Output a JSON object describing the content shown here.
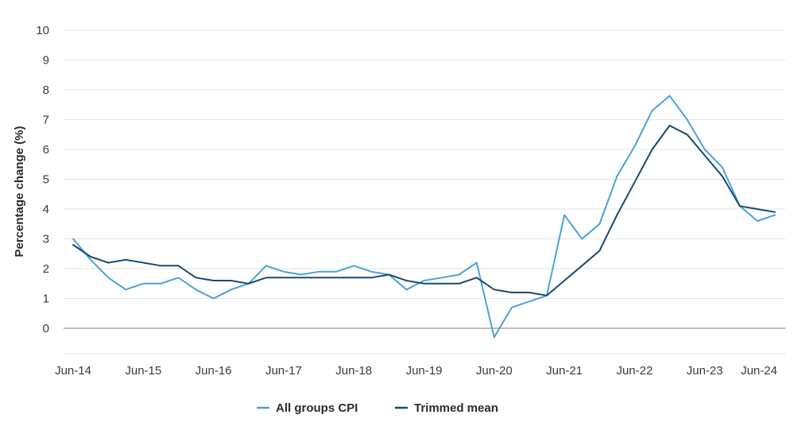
{
  "chart_data": {
    "type": "line",
    "ylabel": "Percentage change (%)",
    "ylim": [
      -1,
      10
    ],
    "yticks": [
      0,
      1,
      2,
      3,
      4,
      5,
      6,
      7,
      8,
      9,
      10
    ],
    "xticks": [
      "Jun-14",
      "Jun-15",
      "Jun-16",
      "Jun-17",
      "Jun-18",
      "Jun-19",
      "Jun-20",
      "Jun-21",
      "Jun-22",
      "Jun-23",
      "Jun-24"
    ],
    "x": [
      "Jun-14",
      "Sep-14",
      "Dec-14",
      "Mar-15",
      "Jun-15",
      "Sep-15",
      "Dec-15",
      "Mar-16",
      "Jun-16",
      "Sep-16",
      "Dec-16",
      "Mar-17",
      "Jun-17",
      "Sep-17",
      "Dec-17",
      "Mar-18",
      "Jun-18",
      "Sep-18",
      "Dec-18",
      "Mar-19",
      "Jun-19",
      "Sep-19",
      "Dec-19",
      "Mar-20",
      "Jun-20",
      "Sep-20",
      "Dec-20",
      "Mar-21",
      "Jun-21",
      "Sep-21",
      "Dec-21",
      "Mar-22",
      "Jun-22",
      "Sep-22",
      "Dec-22",
      "Mar-23",
      "Jun-23",
      "Sep-23",
      "Dec-23",
      "Mar-24",
      "Jun-24"
    ],
    "grid": true,
    "legend": "bottom-center",
    "series": [
      {
        "name": "All groups CPI",
        "color": "#4aa3d4",
        "values": [
          3.0,
          2.3,
          1.7,
          1.3,
          1.5,
          1.5,
          1.7,
          1.3,
          1.0,
          1.3,
          1.5,
          2.1,
          1.9,
          1.8,
          1.9,
          1.9,
          2.1,
          1.9,
          1.8,
          1.3,
          1.6,
          1.7,
          1.8,
          2.2,
          -0.3,
          0.7,
          0.9,
          1.1,
          3.8,
          3.0,
          3.5,
          5.1,
          6.1,
          7.3,
          7.8,
          7.0,
          6.0,
          5.4,
          4.1,
          3.6,
          3.8
        ]
      },
      {
        "name": "Trimmed mean",
        "color": "#1b4a6b",
        "values": [
          2.8,
          2.4,
          2.2,
          2.3,
          2.2,
          2.1,
          2.1,
          1.7,
          1.6,
          1.6,
          1.5,
          1.7,
          1.7,
          1.7,
          1.7,
          1.7,
          1.7,
          1.7,
          1.8,
          1.6,
          1.5,
          1.5,
          1.5,
          1.7,
          1.3,
          1.2,
          1.2,
          1.1,
          1.6,
          2.1,
          2.6,
          3.8,
          4.9,
          6.0,
          6.8,
          6.5,
          5.8,
          5.1,
          4.1,
          4.0,
          3.9
        ]
      }
    ]
  }
}
